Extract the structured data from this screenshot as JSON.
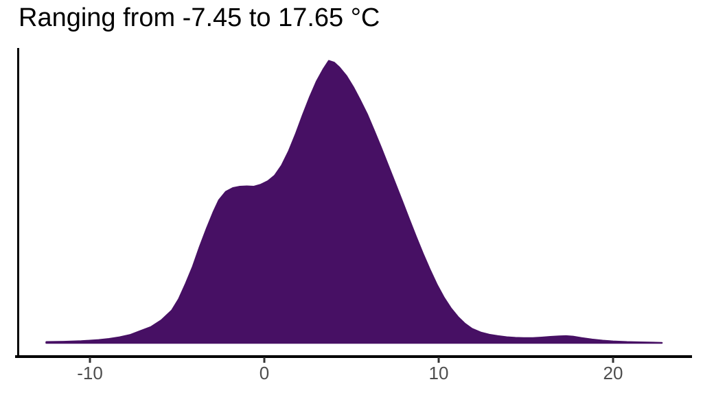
{
  "page": {
    "background": "#ffffff"
  },
  "axis": {
    "line_color": "#000000",
    "tick_color": "#333333",
    "tick_label_color": "#4d4d4d"
  },
  "chart_data": {
    "type": "area",
    "title": "Ranging from -7.45 to 17.65 °C",
    "subtitle": "",
    "xlabel": "",
    "ylabel": "",
    "grid": "off",
    "legend": "none",
    "fill_color": "#471064",
    "x_ticks": [
      -10,
      0,
      10,
      20
    ],
    "x_tick_labels": [
      "-10",
      "0",
      "10",
      "20"
    ],
    "xlim": [
      -14.3,
      24.5
    ],
    "ylim": [
      0,
      1.07
    ],
    "x": [
      -12.5,
      -11.5,
      -10.5,
      -9.5,
      -8.9,
      -8.3,
      -7.7,
      -7.1,
      -6.5,
      -5.9,
      -5.3,
      -4.9,
      -4.5,
      -4.1,
      -3.7,
      -3.3,
      -2.9,
      -2.6,
      -2.2,
      -1.8,
      -1.4,
      -1.0,
      -0.6,
      -0.2,
      0.2,
      0.6,
      1.0,
      1.4,
      1.8,
      2.2,
      2.6,
      3.0,
      3.4,
      3.7,
      4.0,
      4.3,
      4.7,
      5.1,
      5.5,
      5.9,
      6.3,
      6.7,
      7.1,
      7.5,
      7.9,
      8.3,
      8.7,
      9.1,
      9.5,
      9.9,
      10.3,
      10.7,
      11.1,
      11.5,
      11.9,
      12.4,
      12.9,
      13.4,
      13.9,
      14.4,
      14.9,
      15.4,
      15.9,
      16.4,
      16.9,
      17.3,
      17.7,
      18.2,
      18.8,
      19.4,
      20.0,
      20.8,
      21.6,
      22.3,
      22.8
    ],
    "density": [
      0.003,
      0.004,
      0.006,
      0.01,
      0.014,
      0.02,
      0.028,
      0.042,
      0.056,
      0.08,
      0.115,
      0.155,
      0.21,
      0.27,
      0.34,
      0.405,
      0.465,
      0.505,
      0.535,
      0.548,
      0.553,
      0.554,
      0.553,
      0.56,
      0.572,
      0.592,
      0.628,
      0.678,
      0.738,
      0.805,
      0.868,
      0.925,
      0.97,
      0.998,
      0.992,
      0.975,
      0.945,
      0.905,
      0.858,
      0.808,
      0.75,
      0.69,
      0.628,
      0.565,
      0.502,
      0.438,
      0.375,
      0.315,
      0.258,
      0.205,
      0.16,
      0.122,
      0.092,
      0.068,
      0.05,
      0.037,
      0.029,
      0.024,
      0.02,
      0.018,
      0.017,
      0.017,
      0.019,
      0.021,
      0.023,
      0.024,
      0.022,
      0.017,
      0.012,
      0.008,
      0.005,
      0.003,
      0.002,
      0.001,
      0.0
    ]
  }
}
